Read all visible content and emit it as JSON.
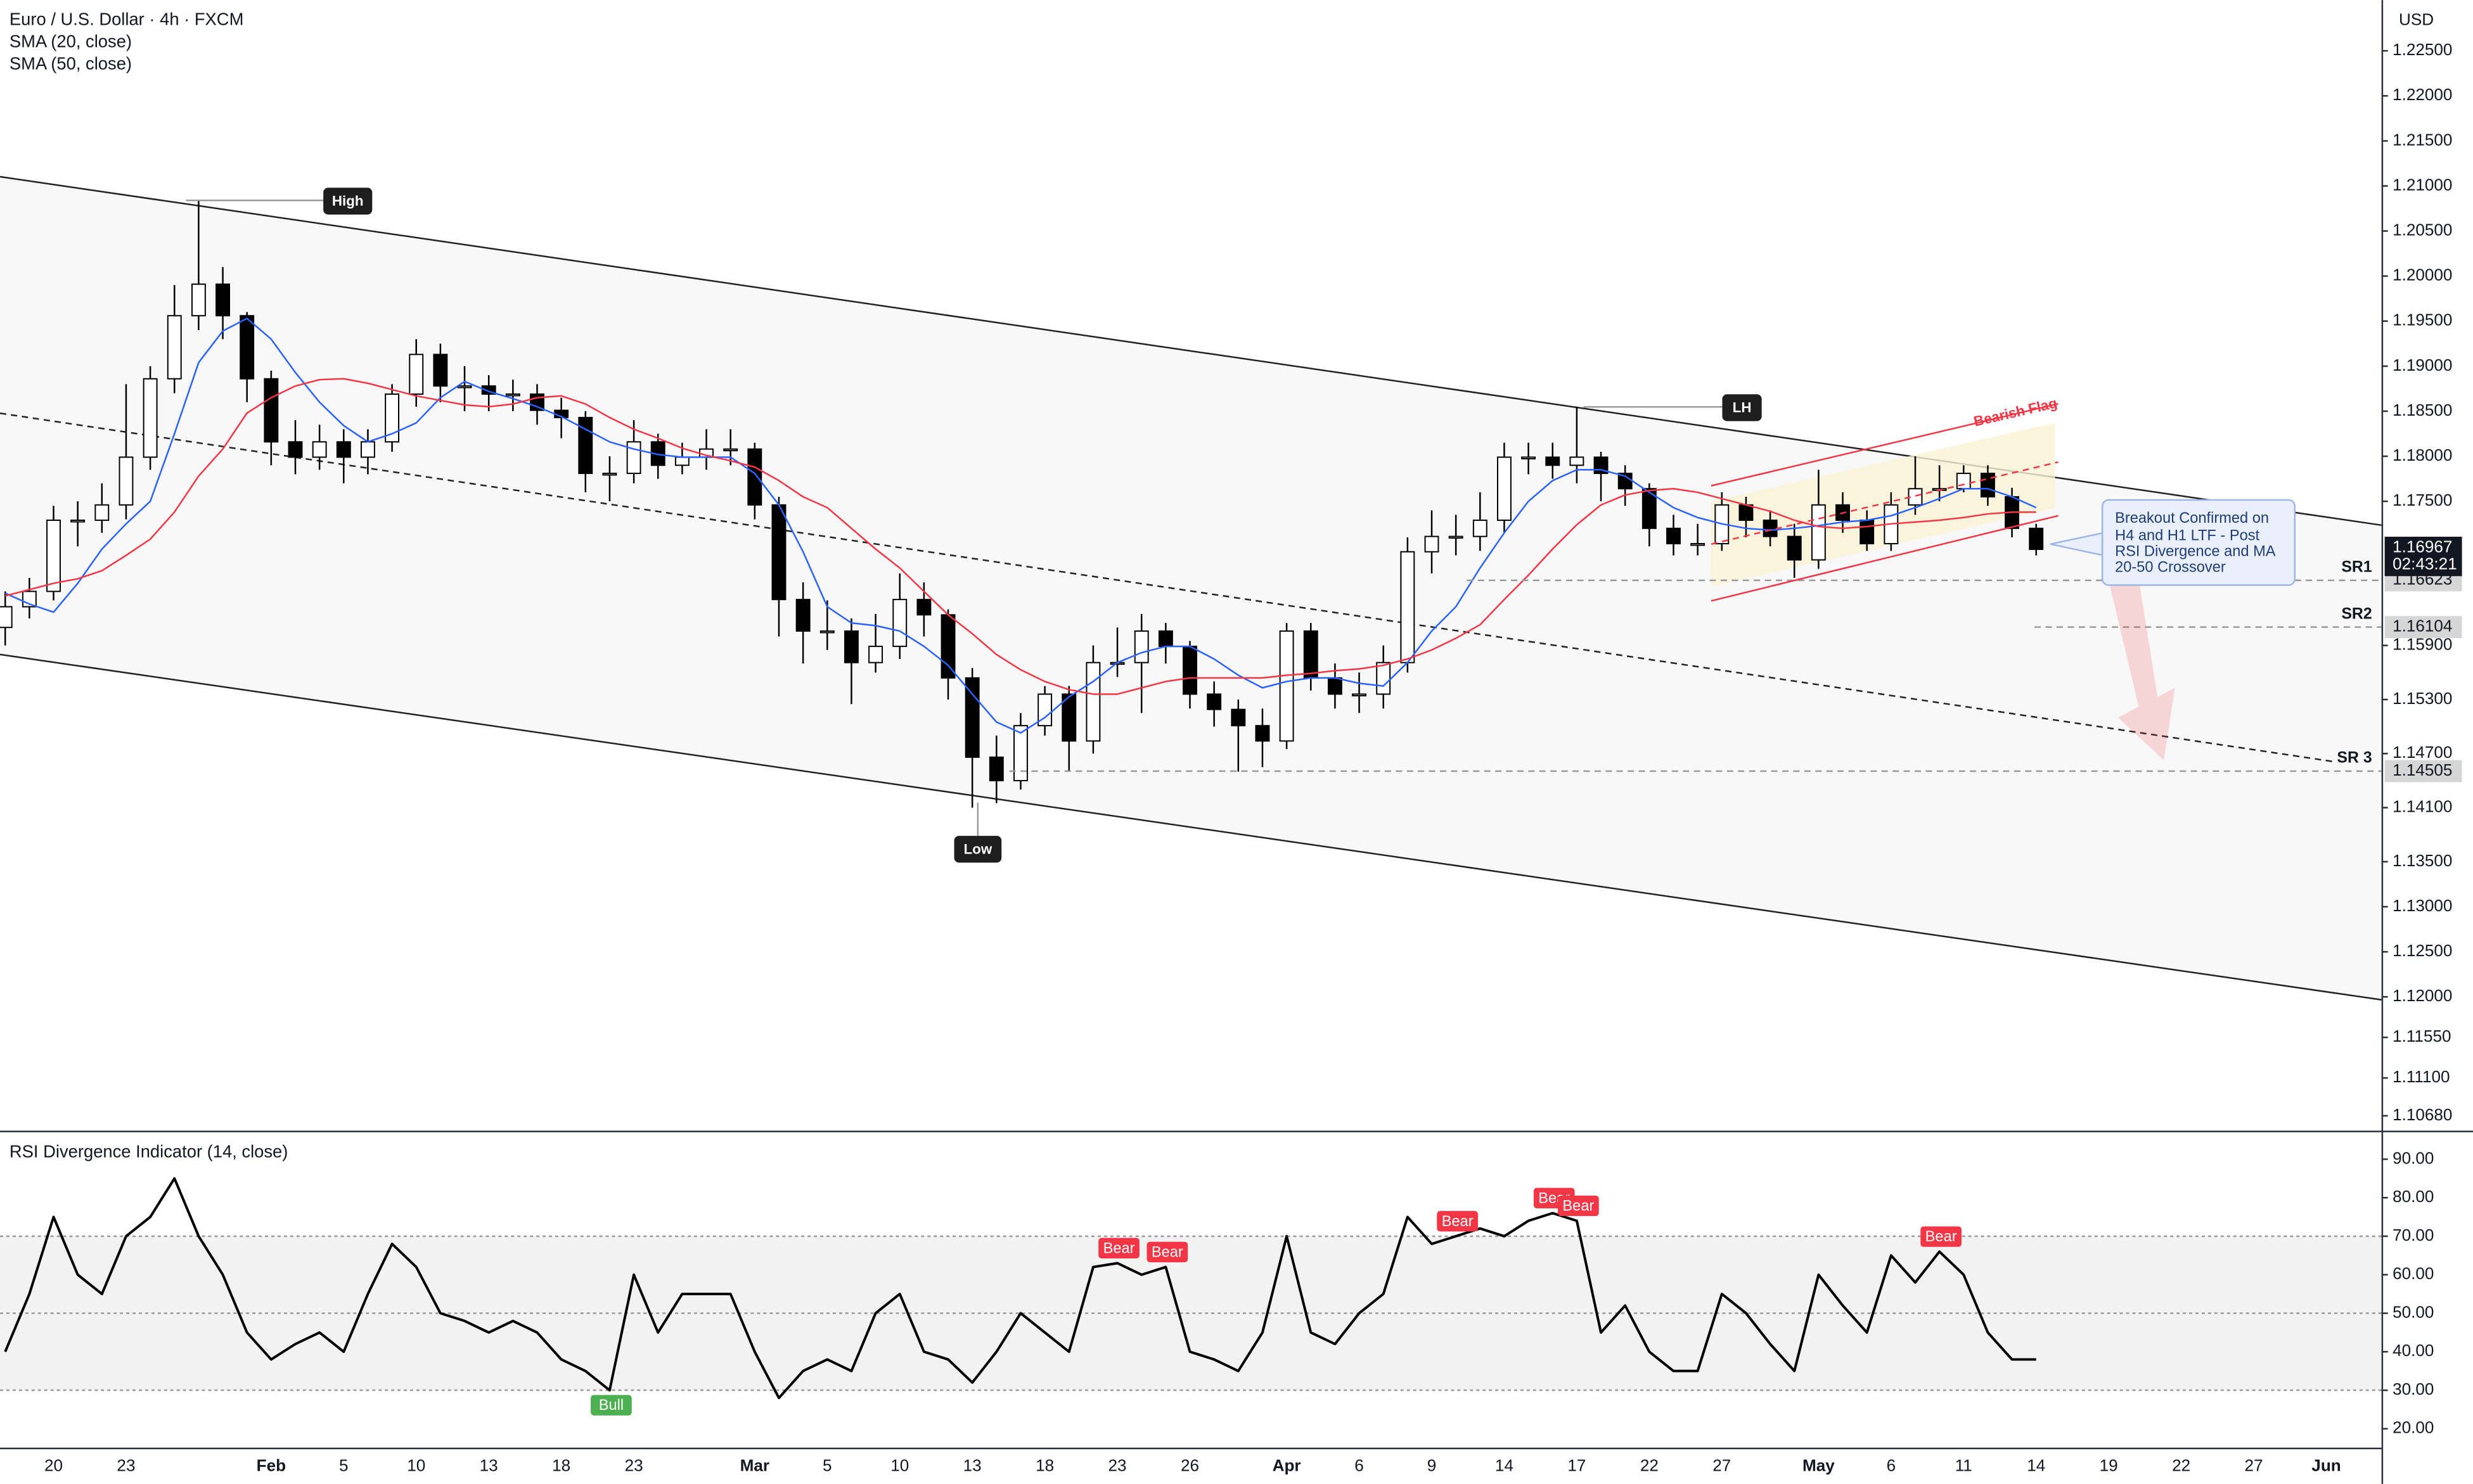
{
  "chart_data": [
    {
      "type": "candlestick",
      "title": "Euro / U.S. Dollar · 4h · FXCM",
      "y_axis_label": "USD",
      "categories": [
        null,
        null,
        "20",
        null,
        null,
        "23",
        null,
        null,
        null,
        null,
        null,
        "Feb",
        null,
        null,
        "5",
        null,
        null,
        "10",
        null,
        null,
        "13",
        null,
        null,
        "18",
        null,
        null,
        "23",
        null,
        null,
        null,
        null,
        "Mar",
        null,
        null,
        "5",
        null,
        null,
        "10",
        null,
        null,
        "13",
        null,
        null,
        "18",
        null,
        null,
        "23",
        null,
        null,
        "26",
        null,
        null,
        null,
        "Apr",
        null,
        null,
        "6",
        null,
        null,
        "9",
        null,
        null,
        "14",
        null,
        null,
        "17",
        null,
        null,
        "22",
        null,
        null,
        "27",
        null,
        null,
        null,
        "May",
        null,
        null,
        "6",
        null,
        null,
        "11",
        null,
        null,
        "14",
        null,
        null,
        "19",
        null,
        null,
        "22",
        null,
        null,
        "27",
        null,
        null,
        "Jun",
        null,
        null
      ],
      "open": [
        1.161,
        1.1633,
        1.165,
        1.1729,
        1.1729,
        1.1746,
        1.1799,
        1.1886,
        1.1956,
        1.1991,
        1.1956,
        1.1886,
        1.1816,
        1.1799,
        1.1816,
        1.1799,
        1.1816,
        1.1869,
        1.1913,
        1.1878,
        1.1878,
        1.1869,
        1.1869,
        1.1851,
        1.1843,
        1.1781,
        1.1781,
        1.1816,
        1.179,
        1.1799,
        1.1808,
        1.1808,
        1.1746,
        1.1641,
        1.1606,
        1.1606,
        1.1571,
        1.1589,
        1.1641,
        1.1624,
        1.1554,
        1.1466,
        1.144,
        1.1501,
        1.1536,
        1.1484,
        1.1571,
        1.1571,
        1.1606,
        1.1589,
        1.1536,
        1.1519,
        1.1501,
        1.1484,
        1.1606,
        1.1554,
        1.1536,
        1.1536,
        1.1571,
        1.1694,
        1.1711,
        1.1711,
        1.1729,
        1.1799,
        1.1799,
        1.179,
        1.1799,
        1.1781,
        1.1764,
        1.172,
        1.1703,
        1.1703,
        1.1746,
        1.1729,
        1.1711,
        1.1685,
        1.1746,
        1.1729,
        1.1703,
        1.1746,
        1.1764,
        1.1764,
        1.1781,
        1.1755,
        1.172,
        null,
        null,
        null,
        null,
        null,
        null,
        null,
        null,
        null,
        null,
        null,
        null,
        null,
        null
      ],
      "high": [
        1.165,
        1.1665,
        1.1745,
        1.175,
        1.177,
        1.188,
        1.19,
        1.199,
        1.2084,
        1.201,
        1.196,
        1.1895,
        1.184,
        1.1835,
        1.183,
        1.183,
        1.188,
        1.193,
        1.1925,
        1.19,
        1.189,
        1.1885,
        1.188,
        1.1865,
        1.185,
        1.18,
        1.184,
        1.1825,
        1.1815,
        1.183,
        1.183,
        1.1815,
        1.1755,
        1.166,
        1.164,
        1.162,
        1.1625,
        1.167,
        1.166,
        1.163,
        1.1565,
        1.149,
        1.1515,
        1.1545,
        1.1545,
        1.159,
        1.161,
        1.1625,
        1.1615,
        1.1595,
        1.155,
        1.153,
        1.152,
        1.1615,
        1.1615,
        1.157,
        1.156,
        1.159,
        1.171,
        1.174,
        1.1735,
        1.176,
        1.1815,
        1.1815,
        1.1815,
        1.1855,
        1.1805,
        1.179,
        1.177,
        1.1735,
        1.1725,
        1.176,
        1.1755,
        1.174,
        1.1725,
        1.1785,
        1.176,
        1.174,
        1.176,
        1.18,
        1.179,
        1.179,
        1.179,
        1.1765,
        1.1725,
        null,
        null,
        null,
        null,
        null,
        null,
        null,
        null,
        null,
        null,
        null,
        null,
        null,
        null
      ],
      "low": [
        1.159,
        1.162,
        1.164,
        1.17,
        1.1715,
        1.173,
        1.1785,
        1.187,
        1.194,
        1.193,
        1.186,
        1.179,
        1.178,
        1.1785,
        1.177,
        1.178,
        1.1805,
        1.1855,
        1.186,
        1.185,
        1.185,
        1.185,
        1.1835,
        1.182,
        1.176,
        1.175,
        1.177,
        1.1775,
        1.178,
        1.1785,
        1.179,
        1.173,
        1.16,
        1.157,
        1.1585,
        1.1525,
        1.156,
        1.1575,
        1.16,
        1.153,
        1.141,
        1.1415,
        1.143,
        1.149,
        1.145,
        1.147,
        1.1555,
        1.1515,
        1.157,
        1.152,
        1.15,
        1.145,
        1.1455,
        1.1475,
        1.154,
        1.152,
        1.1515,
        1.152,
        1.156,
        1.167,
        1.169,
        1.1695,
        1.1715,
        1.178,
        1.1775,
        1.177,
        1.175,
        1.1745,
        1.17,
        1.169,
        1.169,
        1.1695,
        1.171,
        1.17,
        1.1665,
        1.1675,
        1.1715,
        1.1695,
        1.1695,
        1.1735,
        1.175,
        1.176,
        1.1745,
        1.171,
        1.169,
        null,
        null,
        null,
        null,
        null,
        null,
        null,
        null,
        null,
        null,
        null,
        null,
        null,
        null
      ],
      "close": [
        1.1633,
        1.165,
        1.1729,
        1.1729,
        1.1746,
        1.1799,
        1.1886,
        1.1956,
        1.1991,
        1.1956,
        1.1886,
        1.1816,
        1.1799,
        1.1816,
        1.1799,
        1.1816,
        1.1869,
        1.1913,
        1.1878,
        1.1878,
        1.1869,
        1.1869,
        1.1851,
        1.1843,
        1.1781,
        1.1781,
        1.1816,
        1.179,
        1.1799,
        1.1808,
        1.1808,
        1.1746,
        1.1641,
        1.1606,
        1.1606,
        1.1571,
        1.1589,
        1.1641,
        1.1624,
        1.1554,
        1.1466,
        1.144,
        1.1501,
        1.1536,
        1.1484,
        1.1571,
        1.1571,
        1.1606,
        1.1589,
        1.1536,
        1.1519,
        1.1501,
        1.1484,
        1.1606,
        1.1554,
        1.1536,
        1.1536,
        1.1571,
        1.1694,
        1.1711,
        1.1711,
        1.1729,
        1.1799,
        1.1799,
        1.179,
        1.1799,
        1.1781,
        1.1764,
        1.172,
        1.1703,
        1.1703,
        1.1746,
        1.1729,
        1.1711,
        1.1685,
        1.1746,
        1.1729,
        1.1703,
        1.1746,
        1.1764,
        1.1764,
        1.1781,
        1.1755,
        1.172,
        1.16967,
        null,
        null,
        null,
        null,
        null,
        null,
        null,
        null,
        null,
        null,
        null,
        null,
        null,
        null
      ],
      "up_color": "#ffffff",
      "down_color": "#000000",
      "series": [
        {
          "name": "SMA (20, close)",
          "color": "#2962ff",
          "values": [
            1.1648,
            1.1636,
            1.1627,
            1.1659,
            1.1697,
            1.1725,
            1.175,
            1.1825,
            1.1904,
            1.1939,
            1.1953,
            1.193,
            1.1893,
            1.186,
            1.1834,
            1.1816,
            1.1825,
            1.1837,
            1.1865,
            1.1883,
            1.1872,
            1.1864,
            1.1855,
            1.1844,
            1.183,
            1.1816,
            1.1808,
            1.1802,
            1.1799,
            1.1799,
            1.1799,
            1.1781,
            1.1746,
            1.1694,
            1.1633,
            1.1615,
            1.1612,
            1.1606,
            1.1589,
            1.1568,
            1.1536,
            1.1505,
            1.1493,
            1.151,
            1.1533,
            1.155,
            1.1571,
            1.1582,
            1.1589,
            1.1589,
            1.1575,
            1.1557,
            1.1543,
            1.155,
            1.1554,
            1.1554,
            1.1548,
            1.1545,
            1.1571,
            1.1606,
            1.1633,
            1.1676,
            1.1715,
            1.175,
            1.1773,
            1.1785,
            1.1785,
            1.1778,
            1.176,
            1.1743,
            1.1732,
            1.1725,
            1.172,
            1.1718,
            1.172,
            1.1723,
            1.1727,
            1.1729,
            1.1734,
            1.1743,
            1.1753,
            1.1764,
            1.1764,
            1.1755,
            1.1743,
            null,
            null,
            null,
            null,
            null,
            null,
            null,
            null,
            null,
            null,
            null,
            null,
            null,
            null
          ]
        },
        {
          "name": "SMA (50, close)",
          "color": "#f23645",
          "values": [
            1.1645,
            1.1652,
            1.1659,
            1.1664,
            1.1673,
            1.169,
            1.1708,
            1.1738,
            1.1778,
            1.1808,
            1.1848,
            1.1865,
            1.1878,
            1.1885,
            1.1886,
            1.1881,
            1.1874,
            1.1867,
            1.1862,
            1.1857,
            1.1855,
            1.1858,
            1.1865,
            1.1867,
            1.1858,
            1.1843,
            1.183,
            1.182,
            1.1809,
            1.1801,
            1.1795,
            1.1788,
            1.1773,
            1.1755,
            1.1743,
            1.172,
            1.1697,
            1.1676,
            1.165,
            1.1624,
            1.1603,
            1.158,
            1.1563,
            1.155,
            1.1541,
            1.1536,
            1.1536,
            1.1543,
            1.155,
            1.1554,
            1.1554,
            1.1554,
            1.1554,
            1.1557,
            1.1559,
            1.1562,
            1.1564,
            1.1568,
            1.1575,
            1.1585,
            1.1598,
            1.1613,
            1.1641,
            1.1668,
            1.1697,
            1.1724,
            1.1746,
            1.1757,
            1.1762,
            1.1764,
            1.176,
            1.1753,
            1.1746,
            1.1739,
            1.1729,
            1.1722,
            1.172,
            1.1722,
            1.1725,
            1.1727,
            1.1729,
            1.1732,
            1.1736,
            1.1738,
            1.1738,
            null,
            null,
            null,
            null,
            null,
            null,
            null,
            null,
            null,
            null,
            null,
            null,
            null,
            null
          ]
        }
      ],
      "ylim": [
        1.10532,
        1.23063
      ],
      "yticks": [
        {
          "value": 1.225,
          "label": "1.22500"
        },
        {
          "value": 1.22,
          "label": "1.22000"
        },
        {
          "value": 1.215,
          "label": "1.21500"
        },
        {
          "value": 1.21,
          "label": "1.21000"
        },
        {
          "value": 1.205,
          "label": "1.20500"
        },
        {
          "value": 1.2,
          "label": "1.20000"
        },
        {
          "value": 1.195,
          "label": "1.19500"
        },
        {
          "value": 1.19,
          "label": "1.19000"
        },
        {
          "value": 1.185,
          "label": "1.18500"
        },
        {
          "value": 1.18,
          "label": "1.18000"
        },
        {
          "value": 1.175,
          "label": "1.17500"
        },
        {
          "value": 1.159,
          "label": "1.15900"
        },
        {
          "value": 1.153,
          "label": "1.15300"
        },
        {
          "value": 1.147,
          "label": "1.14700"
        },
        {
          "value": 1.141,
          "label": "1.14100"
        },
        {
          "value": 1.135,
          "label": "1.13500"
        },
        {
          "value": 1.13,
          "label": "1.13000"
        },
        {
          "value": 1.125,
          "label": "1.12500"
        },
        {
          "value": 1.12,
          "label": "1.12000"
        },
        {
          "value": 1.1155,
          "label": "1.11550"
        },
        {
          "value": 1.111,
          "label": "1.11100"
        },
        {
          "value": 1.1068,
          "label": "1.10680"
        }
      ],
      "grid": false,
      "levels": [
        {
          "label": "SR1",
          "value": 1.16623
        },
        {
          "label": "SR2",
          "value": 1.16104
        },
        {
          "label": "SR 3",
          "value": 1.14505
        }
      ],
      "last_price": 1.16967,
      "countdown": "02:43:21",
      "annotations": [
        "High",
        "Low",
        "LH",
        "Bearish Flag"
      ],
      "note": [
        "Breakout Confirmed on",
        "H4 and H1 LTF - Post",
        "RSI Divergence and MA",
        "20-50 Crossover"
      ]
    },
    {
      "type": "line",
      "title": "RSI Divergence Indicator (14, close)",
      "color": "#000000",
      "values": [
        40,
        55,
        75,
        60,
        55,
        70,
        75,
        85,
        70,
        60,
        45,
        38,
        42,
        45,
        40,
        55,
        68,
        62,
        50,
        48,
        45,
        48,
        45,
        38,
        35,
        30,
        60,
        45,
        55,
        55,
        55,
        40,
        28,
        35,
        38,
        35,
        50,
        55,
        40,
        38,
        32,
        40,
        50,
        45,
        40,
        62,
        63,
        60,
        62,
        40,
        38,
        35,
        45,
        70,
        45,
        42,
        50,
        55,
        75,
        68,
        70,
        72,
        70,
        74,
        76,
        74,
        45,
        52,
        40,
        35,
        35,
        55,
        50,
        42,
        35,
        60,
        52,
        45,
        65,
        58,
        66,
        60,
        45,
        38,
        38,
        null,
        null,
        null,
        null,
        null,
        null,
        null,
        null,
        null,
        null,
        null,
        null,
        null,
        null
      ],
      "signals": [
        null,
        null,
        null,
        null,
        null,
        null,
        null,
        null,
        null,
        null,
        null,
        null,
        null,
        null,
        null,
        null,
        null,
        null,
        null,
        null,
        null,
        null,
        null,
        null,
        null,
        "Bull",
        null,
        null,
        null,
        null,
        null,
        null,
        null,
        null,
        null,
        null,
        null,
        null,
        null,
        null,
        null,
        null,
        null,
        null,
        null,
        null,
        "Bear",
        null,
        "Bear",
        null,
        null,
        null,
        null,
        null,
        null,
        null,
        null,
        null,
        null,
        null,
        "Bear",
        null,
        null,
        null,
        "Bear",
        "Bear",
        null,
        null,
        null,
        null,
        null,
        null,
        null,
        null,
        null,
        null,
        null,
        null,
        null,
        null,
        "Bear",
        null,
        null,
        null,
        null,
        null,
        null,
        null,
        null,
        null,
        null,
        null,
        null,
        null,
        null,
        null,
        null,
        null,
        null
      ],
      "signal_colors": {
        "Bull": "#4caf50",
        "Bear": "#f23645"
      },
      "ylim": [
        15.1,
        97.4
      ],
      "yticks": [
        {
          "value": 20,
          "label": "20.00"
        },
        {
          "value": 30,
          "label": "30.00"
        },
        {
          "value": 40,
          "label": "40.00"
        },
        {
          "value": 50,
          "label": "50.00"
        },
        {
          "value": 60,
          "label": "60.00"
        },
        {
          "value": 70,
          "label": "70.00"
        },
        {
          "value": 80,
          "label": "80.00"
        },
        {
          "value": 90,
          "label": "90.00"
        }
      ],
      "levels": [
        30,
        50,
        70
      ]
    }
  ]
}
